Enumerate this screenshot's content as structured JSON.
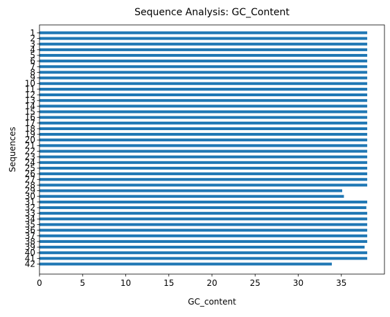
{
  "chart_data": {
    "type": "bar",
    "orientation": "horizontal",
    "title": "Sequence Analysis: GC_Content",
    "xlabel": "GC_content",
    "ylabel": "Sequences",
    "xlim": [
      0,
      40
    ],
    "xticks": [
      0,
      5,
      10,
      15,
      20,
      25,
      30,
      35
    ],
    "grid": false,
    "bar_color": "#1f77b4",
    "categories": [
      "1",
      "2",
      "3",
      "4",
      "5",
      "6",
      "7",
      "8",
      "9",
      "10",
      "11",
      "12",
      "13",
      "14",
      "15",
      "16",
      "17",
      "18",
      "19",
      "20",
      "21",
      "22",
      "23",
      "24",
      "25",
      "26",
      "27",
      "28",
      "29",
      "30",
      "31",
      "32",
      "33",
      "34",
      "35",
      "36",
      "37",
      "38",
      "39",
      "40",
      "41",
      "42"
    ],
    "values": [
      38.0,
      38.0,
      38.0,
      38.0,
      38.0,
      38.0,
      38.0,
      38.0,
      38.0,
      38.0,
      38.0,
      38.0,
      38.0,
      38.0,
      38.0,
      38.0,
      38.0,
      38.0,
      38.0,
      38.0,
      38.0,
      38.0,
      38.0,
      38.0,
      38.0,
      38.0,
      38.0,
      38.0,
      35.1,
      35.3,
      38.0,
      37.9,
      38.0,
      38.0,
      38.0,
      38.0,
      38.0,
      38.0,
      37.7,
      38.0,
      38.0,
      33.9
    ]
  }
}
